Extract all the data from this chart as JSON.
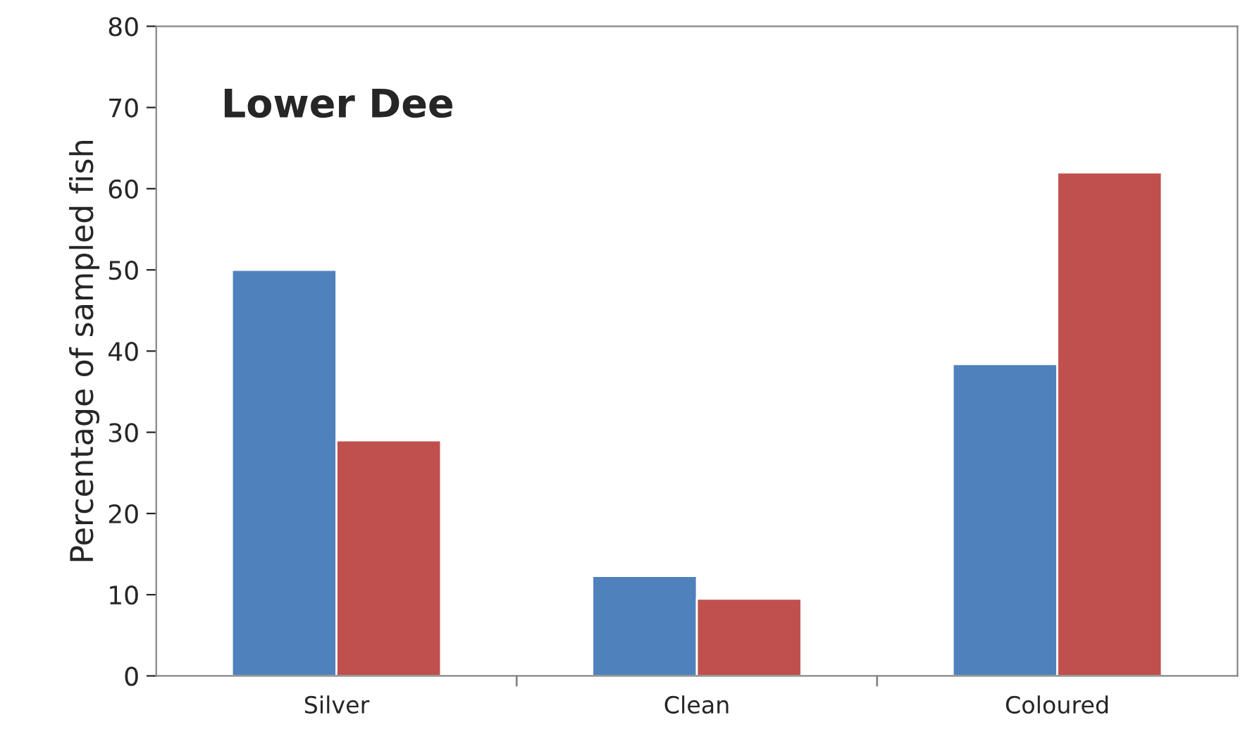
{
  "chart_data": {
    "type": "bar",
    "title": "Lower Dee",
    "ylabel": "Percentage of sampled fish",
    "categories": [
      "Silver",
      "Clean",
      "Coloured"
    ],
    "series": [
      {
        "color": "#4f81bd",
        "values": [
          50.0,
          12.3,
          38.4
        ]
      },
      {
        "color": "#c0504d",
        "values": [
          29.0,
          9.5,
          62.0
        ]
      }
    ],
    "ylim": [
      0,
      80
    ],
    "yticks": [
      0,
      10,
      20,
      30,
      40,
      50,
      60,
      70,
      80
    ],
    "grid": false,
    "legend": false
  }
}
